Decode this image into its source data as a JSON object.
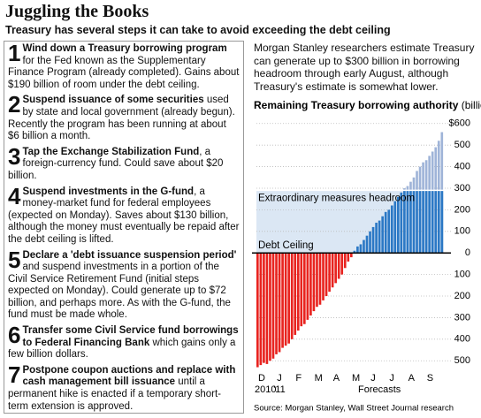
{
  "header": {
    "title": "Juggling the Books",
    "subtitle": "Treasury has several steps it can take to avoid exceeding the debt ceiling"
  },
  "steps": [
    {
      "num": "1",
      "bold": "Wind down a Treasury borrowing program",
      "text": " for the Fed known as the Supplementary Finance Program (already completed). Gains about $190 billion of room under the debt ceiling."
    },
    {
      "num": "2",
      "bold": "Suspend issuance of some securities",
      "text": " used by state and local government (already begun). Recently the program has been running at about $6 billion a month."
    },
    {
      "num": "3",
      "bold": "Tap the Exchange Stabilization Fund",
      "text": ", a foreign-currency fund. Could save about $20 billion."
    },
    {
      "num": "4",
      "bold": "Suspend investments in the G-fund",
      "text": ", a money-market fund for federal employees (expected on Monday). Saves about $130 billion, although the money must eventually be repaid after the debt ceiling is lifted."
    },
    {
      "num": "5",
      "bold": "Declare a 'debt issuance suspension period'",
      "text": " and suspend investments in a portion of the Civil Service Retirement Fund (initial steps expected on Monday). Could generate up to $72 billion, and perhaps more. As with the G-fund, the fund must be made whole."
    },
    {
      "num": "6",
      "bold": "Transfer some Civil Service fund borrowings to Federal Financing Bank",
      "text": " which gains only a few billion dollars."
    },
    {
      "num": "7",
      "bold": "Postpone coupon auctions and replace with cash management bill issuance",
      "text": " until a permanent hike is enacted if a temporary short-term extension is approved."
    }
  ],
  "intro": "Morgan Stanley researchers estimate Treasury can generate up to $300 billion in borrowing headroom through early August, although Treasury's estimate is somewhat lower.",
  "source": "Source: Morgan Stanley, Wall Street Journal research",
  "chart_data": {
    "type": "bar",
    "title": "Remaining Treasury borrowing authority",
    "unit": "(billions)",
    "categories": [
      "D",
      null,
      null,
      null,
      null,
      null,
      "J",
      null,
      null,
      null,
      null,
      null,
      "F",
      null,
      null,
      null,
      null,
      null,
      "M",
      null,
      null,
      null,
      null,
      null,
      "A",
      null,
      null,
      null,
      null,
      null,
      "M",
      null,
      null,
      null,
      null,
      null,
      "J",
      null,
      null,
      null,
      null,
      null,
      "J",
      null,
      null,
      null,
      null,
      null,
      "A",
      null,
      null,
      null,
      null,
      null,
      "S",
      null,
      null,
      null,
      null,
      null
    ],
    "year_labels": [
      "2010",
      null,
      null,
      null,
      null,
      null,
      "'11",
      null,
      null,
      null,
      null,
      null,
      null,
      null,
      null,
      null,
      null,
      null,
      null,
      null,
      null,
      null,
      null,
      null,
      null,
      null,
      null,
      null,
      null,
      null,
      null,
      null,
      null,
      null,
      null,
      null,
      null,
      null,
      null,
      null,
      null,
      null,
      null,
      null,
      null,
      null,
      null,
      null,
      null,
      null,
      null,
      null,
      null,
      null,
      null,
      null,
      null,
      null,
      null,
      null
    ],
    "values": [
      -530,
      -520,
      -510,
      -515,
      -500,
      -490,
      -470,
      -460,
      -440,
      -430,
      -420,
      -400,
      -380,
      -360,
      -340,
      -330,
      -310,
      -290,
      -270,
      -250,
      -240,
      -220,
      -200,
      -180,
      -160,
      -140,
      -120,
      -100,
      -70,
      -40,
      -20,
      10,
      30,
      40,
      60,
      80,
      100,
      120,
      140,
      150,
      170,
      190,
      200,
      220,
      240,
      260,
      280,
      300,
      310,
      330,
      350,
      380,
      400,
      420,
      430,
      450,
      470,
      490,
      520,
      560
    ],
    "color": "#2b78c5",
    "color_above_headroom": "#9fb4d8",
    "negative_color": "#e8231f",
    "band_color": "#dbe7f4",
    "headroom_level": 290,
    "headroom_label": "Extraordinary measures headroom",
    "ceiling_label": "Debt Ceiling",
    "forecast_label": "Forecasts",
    "ylim": [
      -540,
      640
    ],
    "yticks": [
      {
        "value": 600,
        "label": "$600"
      },
      500,
      400,
      300,
      200,
      100,
      0,
      {
        "value": -100,
        "label": "100"
      },
      {
        "value": -200,
        "label": "200"
      },
      {
        "value": -300,
        "label": "300"
      },
      {
        "value": -400,
        "label": "400"
      },
      {
        "value": -500,
        "label": "500"
      }
    ]
  }
}
